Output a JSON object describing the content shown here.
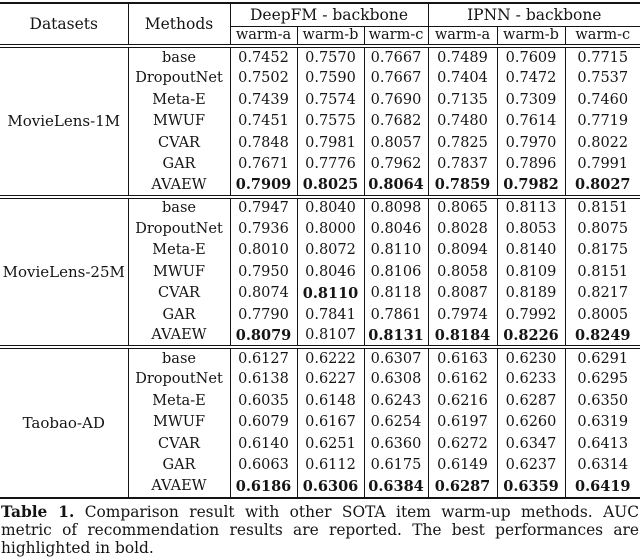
{
  "table": {
    "header": {
      "datasets": "Datasets",
      "methods": "Methods",
      "backbone1": "DeepFM - backbone",
      "backbone2": "IPNN - backbone",
      "subcols": [
        "warm-a",
        "warm-b",
        "warm-c",
        "warm-a",
        "warm-b",
        "warm-c"
      ]
    },
    "groups": [
      {
        "dataset": "MovieLens-1M",
        "rows": [
          {
            "method": "base",
            "values": [
              "0.7452",
              "0.7570",
              "0.7667",
              "0.7489",
              "0.7609",
              "0.7715"
            ],
            "bold": [
              0,
              0,
              0,
              0,
              0,
              0
            ]
          },
          {
            "method": "DropoutNet",
            "values": [
              "0.7502",
              "0.7590",
              "0.7667",
              "0.7404",
              "0.7472",
              "0.7537"
            ],
            "bold": [
              0,
              0,
              0,
              0,
              0,
              0
            ]
          },
          {
            "method": "Meta-E",
            "values": [
              "0.7439",
              "0.7574",
              "0.7690",
              "0.7135",
              "0.7309",
              "0.7460"
            ],
            "bold": [
              0,
              0,
              0,
              0,
              0,
              0
            ]
          },
          {
            "method": "MWUF",
            "values": [
              "0.7451",
              "0.7575",
              "0.7682",
              "0.7480",
              "0.7614",
              "0.7719"
            ],
            "bold": [
              0,
              0,
              0,
              0,
              0,
              0
            ]
          },
          {
            "method": "CVAR",
            "values": [
              "0.7848",
              "0.7981",
              "0.8057",
              "0.7825",
              "0.7970",
              "0.8022"
            ],
            "bold": [
              0,
              0,
              0,
              0,
              0,
              0
            ]
          },
          {
            "method": "GAR",
            "values": [
              "0.7671",
              "0.7776",
              "0.7962",
              "0.7837",
              "0.7896",
              "0.7991"
            ],
            "bold": [
              0,
              0,
              0,
              0,
              0,
              0
            ]
          },
          {
            "method": "AVAEW",
            "values": [
              "0.7909",
              "0.8025",
              "0.8064",
              "0.7859",
              "0.7982",
              "0.8027"
            ],
            "bold": [
              1,
              1,
              1,
              1,
              1,
              1
            ]
          }
        ]
      },
      {
        "dataset": "MovieLens-25M",
        "rows": [
          {
            "method": "base",
            "values": [
              "0.7947",
              "0.8040",
              "0.8098",
              "0.8065",
              "0.8113",
              "0.8151"
            ],
            "bold": [
              0,
              0,
              0,
              0,
              0,
              0
            ]
          },
          {
            "method": "DropoutNet",
            "values": [
              "0.7936",
              "0.8000",
              "0.8046",
              "0.8028",
              "0.8053",
              "0.8075"
            ],
            "bold": [
              0,
              0,
              0,
              0,
              0,
              0
            ]
          },
          {
            "method": "Meta-E",
            "values": [
              "0.8010",
              "0.8072",
              "0.8110",
              "0.8094",
              "0.8140",
              "0.8175"
            ],
            "bold": [
              0,
              0,
              0,
              0,
              0,
              0
            ]
          },
          {
            "method": "MWUF",
            "values": [
              "0.7950",
              "0.8046",
              "0.8106",
              "0.8058",
              "0.8109",
              "0.8151"
            ],
            "bold": [
              0,
              0,
              0,
              0,
              0,
              0
            ]
          },
          {
            "method": "CVAR",
            "values": [
              "0.8074",
              "0.8110",
              "0.8118",
              "0.8087",
              "0.8189",
              "0.8217"
            ],
            "bold": [
              0,
              1,
              0,
              0,
              0,
              0
            ]
          },
          {
            "method": "GAR",
            "values": [
              "0.7790",
              "0.7841",
              "0.7861",
              "0.7974",
              "0.7992",
              "0.8005"
            ],
            "bold": [
              0,
              0,
              0,
              0,
              0,
              0
            ]
          },
          {
            "method": "AVAEW",
            "values": [
              "0.8079",
              "0.8107",
              "0.8131",
              "0.8184",
              "0.8226",
              "0.8249"
            ],
            "bold": [
              1,
              0,
              1,
              1,
              1,
              1
            ]
          }
        ]
      },
      {
        "dataset": "Taobao-AD",
        "rows": [
          {
            "method": "base",
            "values": [
              "0.6127",
              "0.6222",
              "0.6307",
              "0.6163",
              "0.6230",
              "0.6291"
            ],
            "bold": [
              0,
              0,
              0,
              0,
              0,
              0
            ]
          },
          {
            "method": "DropoutNet",
            "values": [
              "0.6138",
              "0.6227",
              "0.6308",
              "0.6162",
              "0.6233",
              "0.6295"
            ],
            "bold": [
              0,
              0,
              0,
              0,
              0,
              0
            ]
          },
          {
            "method": "Meta-E",
            "values": [
              "0.6035",
              "0.6148",
              "0.6243",
              "0.6216",
              "0.6287",
              "0.6350"
            ],
            "bold": [
              0,
              0,
              0,
              0,
              0,
              0
            ]
          },
          {
            "method": "MWUF",
            "values": [
              "0.6079",
              "0.6167",
              "0.6254",
              "0.6197",
              "0.6260",
              "0.6319"
            ],
            "bold": [
              0,
              0,
              0,
              0,
              0,
              0
            ]
          },
          {
            "method": "CVAR",
            "values": [
              "0.6140",
              "0.6251",
              "0.6360",
              "0.6272",
              "0.6347",
              "0.6413"
            ],
            "bold": [
              0,
              0,
              0,
              0,
              0,
              0
            ]
          },
          {
            "method": "GAR",
            "values": [
              "0.6063",
              "0.6112",
              "0.6175",
              "0.6149",
              "0.6237",
              "0.6314"
            ],
            "bold": [
              0,
              0,
              0,
              0,
              0,
              0
            ]
          },
          {
            "method": "AVAEW",
            "values": [
              "0.6186",
              "0.6306",
              "0.6384",
              "0.6287",
              "0.6359",
              "0.6419"
            ],
            "bold": [
              1,
              1,
              1,
              1,
              1,
              1
            ]
          }
        ]
      }
    ]
  },
  "caption": {
    "label": "Table 1.",
    "text": "Comparison result with other SOTA item warm-up methods. AUC metric of recommendation results are reported. The best performances are highlighted in bold."
  }
}
